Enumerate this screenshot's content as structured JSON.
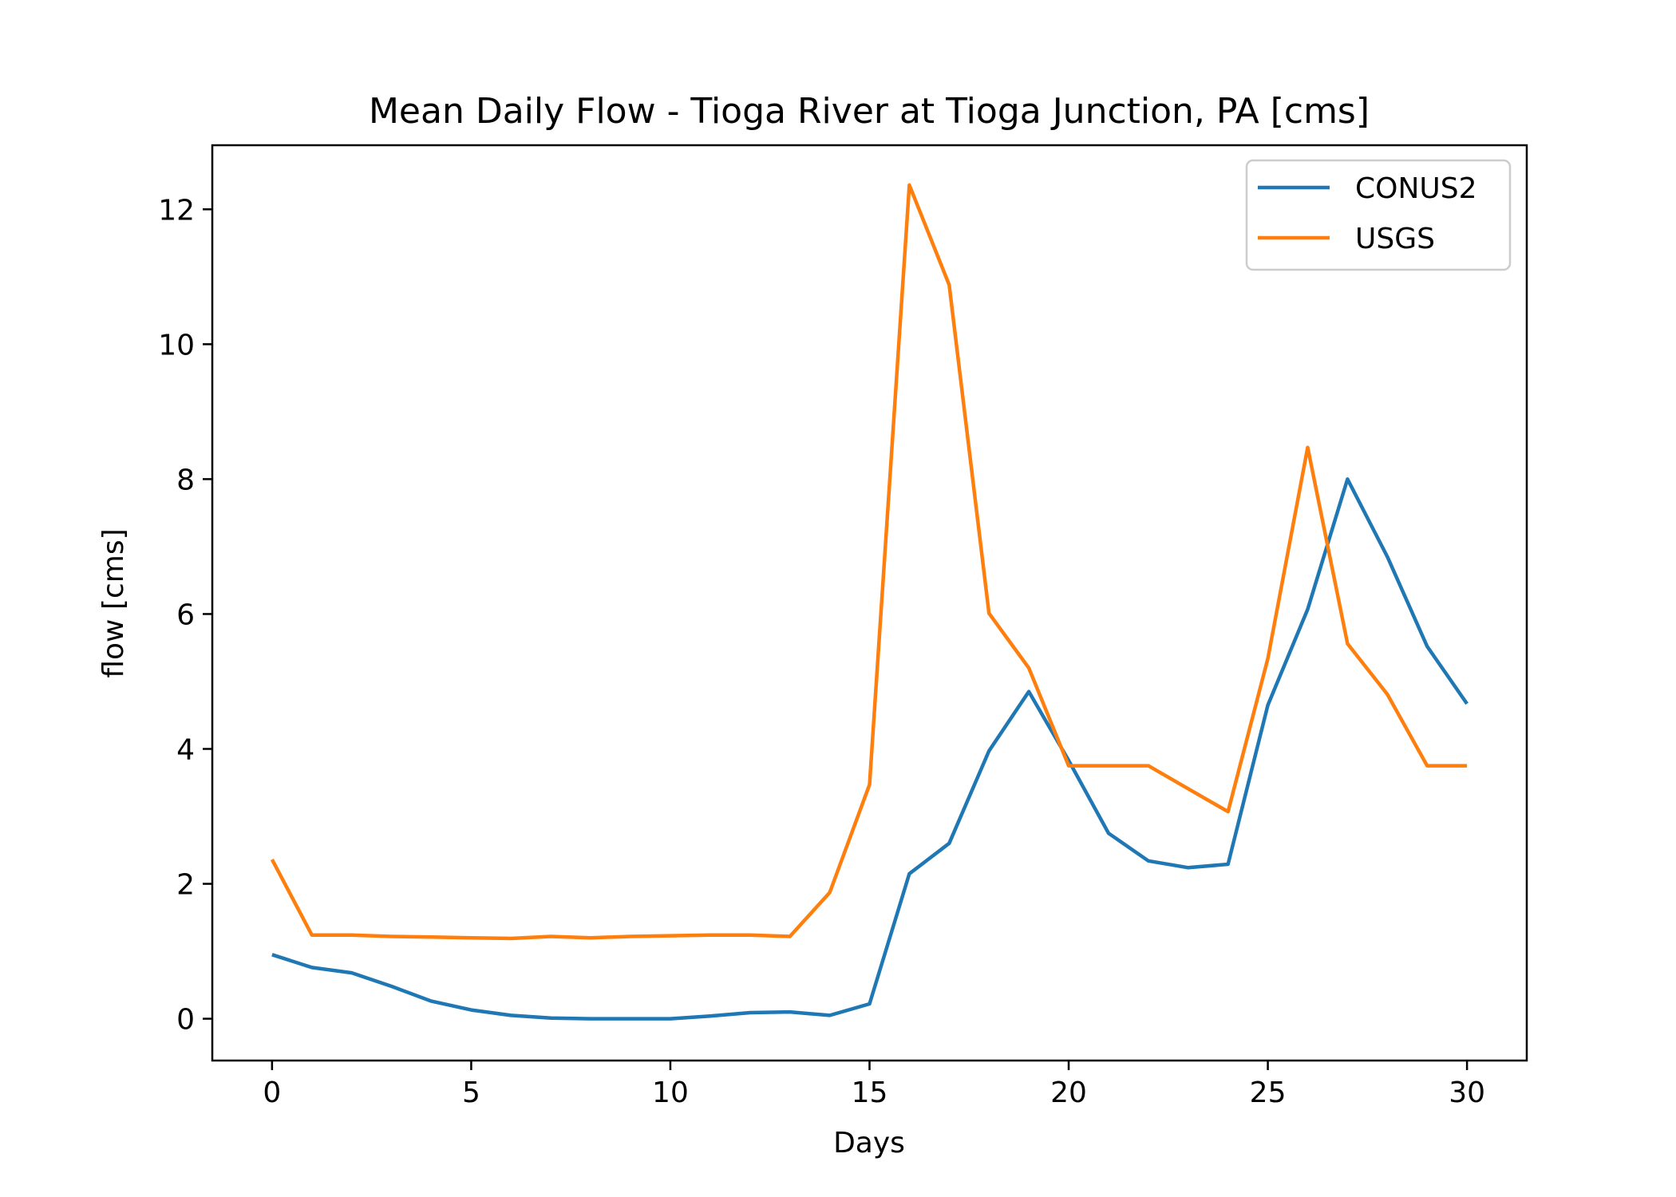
{
  "chart_data": {
    "type": "line",
    "title": "Mean Daily Flow - Tioga River at Tioga Junction, PA [cms]",
    "xlabel": "Days",
    "ylabel": "flow [cms]",
    "xlim": [
      -1.5,
      31.5
    ],
    "ylim": [
      -0.62,
      12.95
    ],
    "xticks": [
      0,
      5,
      10,
      15,
      20,
      25,
      30
    ],
    "yticks": [
      0,
      2,
      4,
      6,
      8,
      10,
      12
    ],
    "grid": false,
    "legend_position": "upper right",
    "x": [
      0,
      1,
      2,
      3,
      4,
      5,
      6,
      7,
      8,
      9,
      10,
      11,
      12,
      13,
      14,
      15,
      16,
      17,
      18,
      19,
      20,
      21,
      22,
      23,
      24,
      25,
      26,
      27,
      28,
      29,
      30
    ],
    "series": [
      {
        "name": "CONUS2",
        "color": "#1f77b4",
        "values": [
          0.95,
          0.76,
          0.68,
          0.48,
          0.26,
          0.13,
          0.05,
          0.01,
          0.0,
          0.0,
          0.0,
          0.04,
          0.09,
          0.1,
          0.05,
          0.22,
          2.15,
          2.6,
          3.97,
          4.85,
          3.83,
          2.75,
          2.34,
          2.24,
          2.29,
          4.65,
          6.07,
          8.0,
          6.85,
          5.52,
          4.67
        ]
      },
      {
        "name": "USGS",
        "color": "#ff7f0e",
        "values": [
          2.36,
          1.24,
          1.24,
          1.22,
          1.21,
          1.2,
          1.19,
          1.22,
          1.2,
          1.22,
          1.23,
          1.24,
          1.24,
          1.22,
          1.87,
          3.47,
          12.36,
          10.88,
          6.01,
          5.2,
          3.75,
          3.75,
          3.75,
          3.41,
          3.07,
          5.34,
          8.47,
          5.56,
          4.81,
          3.75,
          3.75
        ]
      }
    ]
  }
}
